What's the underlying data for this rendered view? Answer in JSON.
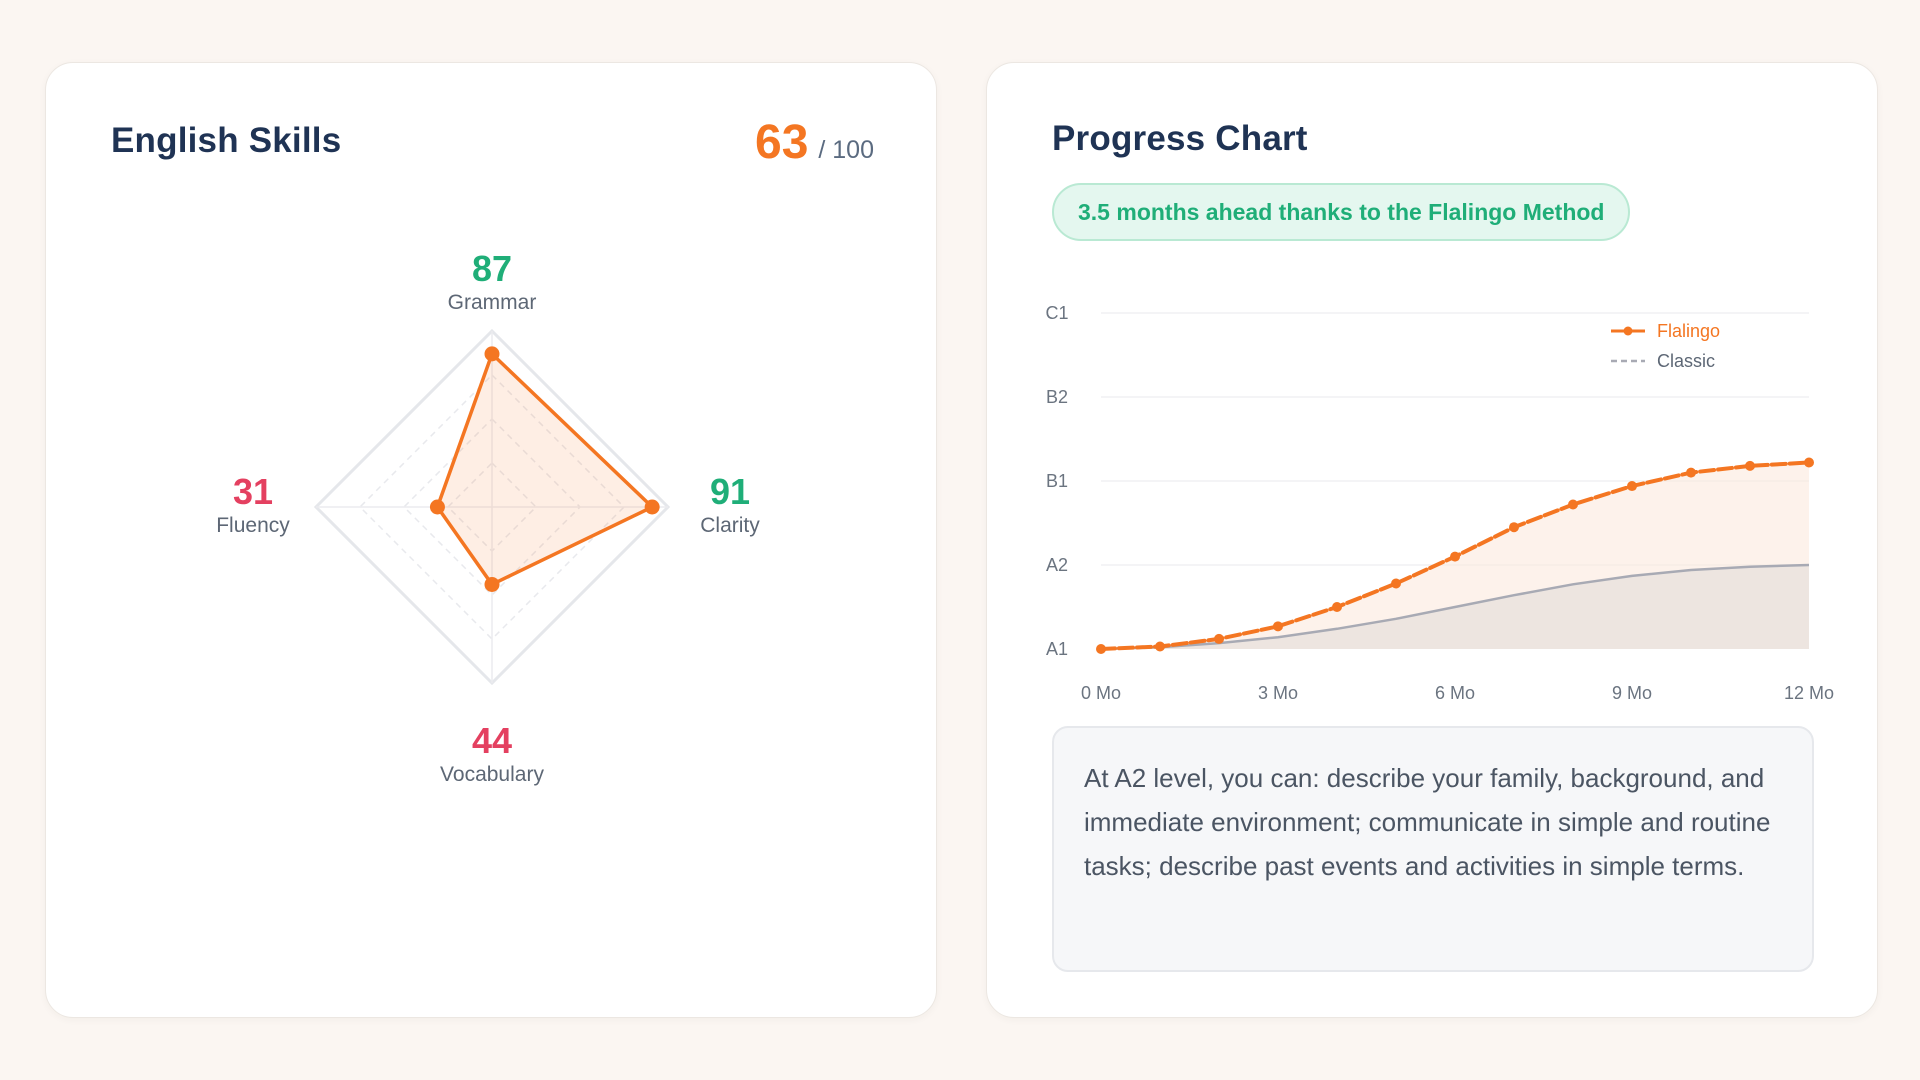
{
  "skills_card": {
    "title": "English Skills",
    "score": "63",
    "score_max": "/ 100",
    "skills": [
      {
        "key": "grammar",
        "name": "Grammar",
        "value": 87
      },
      {
        "key": "clarity",
        "name": "Clarity",
        "value": 91
      },
      {
        "key": "vocabulary",
        "name": "Vocabulary",
        "value": 44
      },
      {
        "key": "fluency",
        "name": "Fluency",
        "value": 31
      }
    ],
    "colors": {
      "good": "#1fae78",
      "bad": "#e44060",
      "accent": "#f47622"
    }
  },
  "progress_card": {
    "title": "Progress Chart",
    "badge": "3.5 months ahead thanks to the Flalingo Method",
    "info_text": "At A2 level, you can: describe your family, background, and immediate environment; communicate in simple and routine tasks; describe past events and activities in simple terms."
  },
  "chart_data": {
    "type": "line",
    "y_levels": [
      "A1",
      "A2",
      "B1",
      "B2",
      "C1"
    ],
    "x_ticks": [
      "0 Mo",
      "3 Mo",
      "6 Mo",
      "9 Mo",
      "12 Mo"
    ],
    "x_range": [
      0,
      12
    ],
    "y_range": [
      0,
      4
    ],
    "legend_position": "top-right",
    "series": [
      {
        "name": "Flalingo",
        "color": "#f47622",
        "style": "solid-with-markers",
        "x": [
          0,
          1,
          2,
          3,
          4,
          5,
          6,
          7,
          8,
          9,
          10,
          11,
          12
        ],
        "y": [
          0.0,
          0.03,
          0.12,
          0.27,
          0.5,
          0.78,
          1.1,
          1.45,
          1.72,
          1.94,
          2.1,
          2.18,
          2.22
        ]
      },
      {
        "name": "Classic",
        "color": "#a8aab4",
        "style": "dashed",
        "x": [
          0,
          1,
          2,
          3,
          4,
          5,
          6,
          7,
          8,
          9,
          10,
          11,
          12
        ],
        "y": [
          0.0,
          0.02,
          0.07,
          0.14,
          0.24,
          0.36,
          0.5,
          0.64,
          0.77,
          0.87,
          0.94,
          0.98,
          1.0
        ]
      }
    ]
  }
}
